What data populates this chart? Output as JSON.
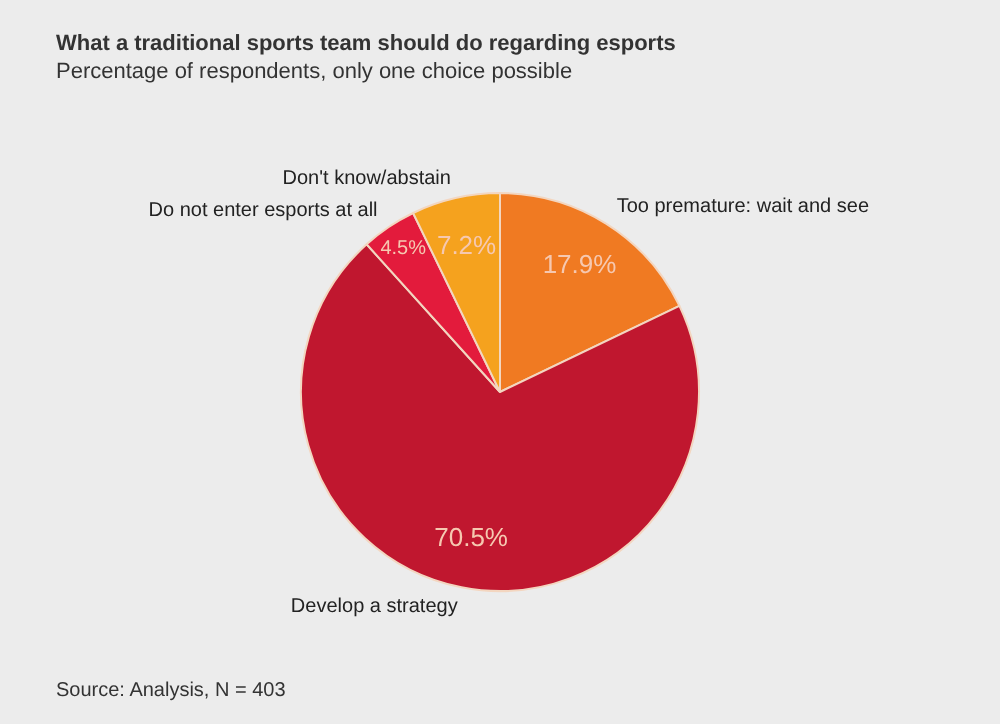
{
  "chart_data": {
    "type": "pie",
    "title": "What a traditional sports team should do regarding esports",
    "subtitle": "Percentage of respondents, only one choice possible",
    "categories": [
      "Too premature: wait and see",
      "Develop a strategy",
      "Do not enter esports at all",
      "Don't know/abstain"
    ],
    "values": [
      17.9,
      70.5,
      4.5,
      7.2
    ],
    "colors": [
      "#f07a22",
      "#c0172f",
      "#e31b3c",
      "#f5a21e"
    ],
    "value_labels": [
      "17.9%",
      "70.5%",
      "4.5%",
      "7.2%"
    ],
    "legend": false,
    "annotations": [
      "Source: Analysis, N = 403"
    ]
  }
}
